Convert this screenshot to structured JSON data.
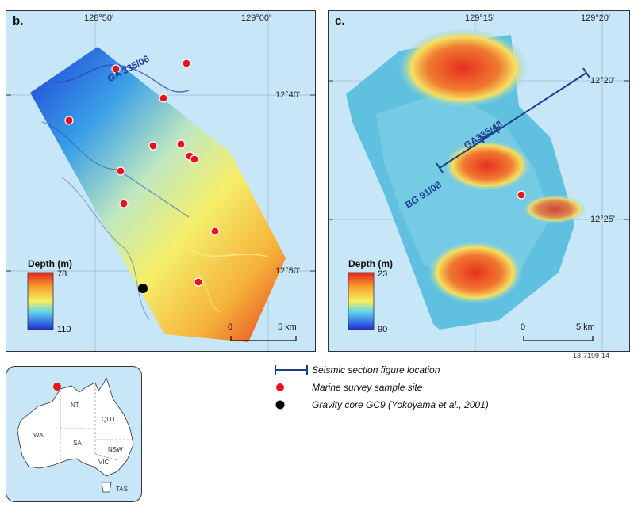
{
  "panel_b": {
    "label": "b.",
    "lon_ticks": [
      "128°50'",
      "129°00'"
    ],
    "lat_ticks": [
      "12°40'",
      "12°50'"
    ],
    "line_label": "GA 335/06",
    "legend": {
      "title": "Depth (m)",
      "min": "78",
      "max": "110"
    },
    "scale": {
      "start": "0",
      "end": "5 km"
    }
  },
  "panel_c": {
    "label": "c.",
    "lon_ticks": [
      "129°15'",
      "129°20'"
    ],
    "lat_ticks": [
      "12°20'",
      "12°25'"
    ],
    "line_label_1": "GA335/48",
    "line_label_2": "BG 91/08",
    "legend": {
      "title": "Depth (m)",
      "min": "23",
      "max": "90"
    },
    "scale": {
      "start": "0",
      "end": "5 km"
    }
  },
  "figure_id": "13-7199-14",
  "key": {
    "seismic": "Seismic section figure location",
    "marine": "Marine survey sample site",
    "gravity": "Gravity core GC9 (Yokoyama et al., 2001)"
  },
  "inset": {
    "states": [
      "NT",
      "QLD",
      "WA",
      "SA",
      "NSW",
      "VIC",
      "TAS"
    ]
  },
  "colors": {
    "sea": "#c7e6f7",
    "sample_site": "#e8141b",
    "gravity_core": "#000000",
    "seismic_line": "#1a3f8f"
  }
}
